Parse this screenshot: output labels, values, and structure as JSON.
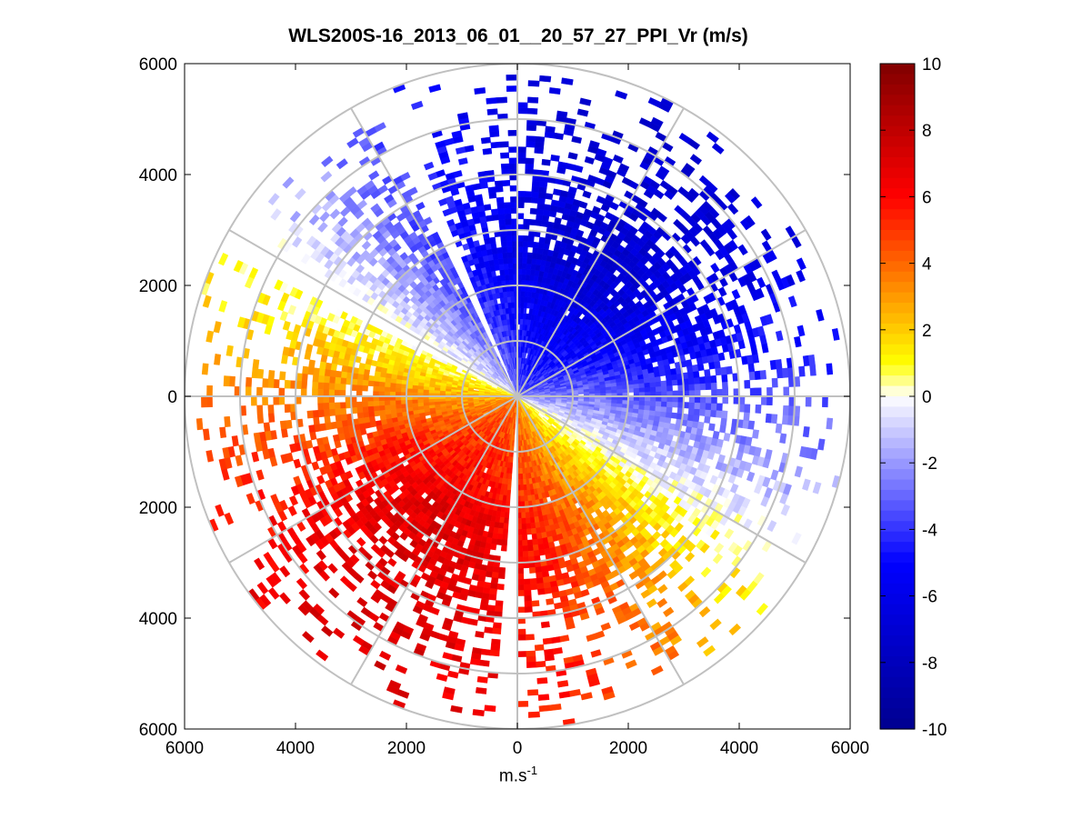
{
  "chart_data": {
    "type": "heatmap",
    "subtype": "polar-ppi",
    "title": "WLS200S-16_2013_06_01__20_57_27_PPI_Vr (m/s)",
    "xlabel": "m.s",
    "xlabel_superscript": "-1",
    "ylabel": "",
    "xlim": [
      -6000,
      6000
    ],
    "ylim": [
      -6000,
      6000
    ],
    "x_ticks": [
      -6000,
      -4000,
      -2000,
      0,
      2000,
      4000,
      6000
    ],
    "x_tick_labels": [
      "6000",
      "4000",
      "2000",
      "0",
      "2000",
      "4000",
      "6000"
    ],
    "y_ticks": [
      6000,
      4000,
      2000,
      0,
      -2000,
      -4000,
      -6000
    ],
    "y_tick_labels": [
      "6000",
      "4000",
      "2000",
      "0",
      "2000",
      "4000",
      "6000"
    ],
    "polar_grid": {
      "rings_m": [
        1000,
        2000,
        3000,
        4000,
        5000,
        6000
      ],
      "spoke_angles_deg": [
        0,
        30,
        60,
        90,
        120,
        150,
        180,
        210,
        240,
        270,
        300,
        330
      ]
    },
    "radial_velocity_field": {
      "units": "m/s",
      "max_range_m": 6000,
      "approaching_peak_azimuth_deg": 60,
      "receding_peak_azimuth_deg": 220,
      "peak_abs_velocity": 7,
      "blank_sectors_deg": [
        [
          -93.5,
          -89.5
        ],
        [
          -211,
          -207
        ],
        [
          -247,
          -244
        ]
      ],
      "scattered_outer_coverage": true
    },
    "colorbar": {
      "min": -10,
      "max": 10,
      "ticks": [
        10,
        8,
        6,
        4,
        2,
        0,
        -2,
        -4,
        -6,
        -8,
        -10
      ],
      "tick_labels": [
        "10",
        "8",
        "6",
        "4",
        "2",
        "0",
        "-2",
        "-4",
        "-6",
        "-8",
        "-10"
      ],
      "colormap": "blue-white-yellow-red",
      "stops": [
        "#00008f",
        "#0000ff",
        "#ffffff",
        "#ffff00",
        "#ff0000",
        "#800000"
      ]
    },
    "grid": true
  }
}
